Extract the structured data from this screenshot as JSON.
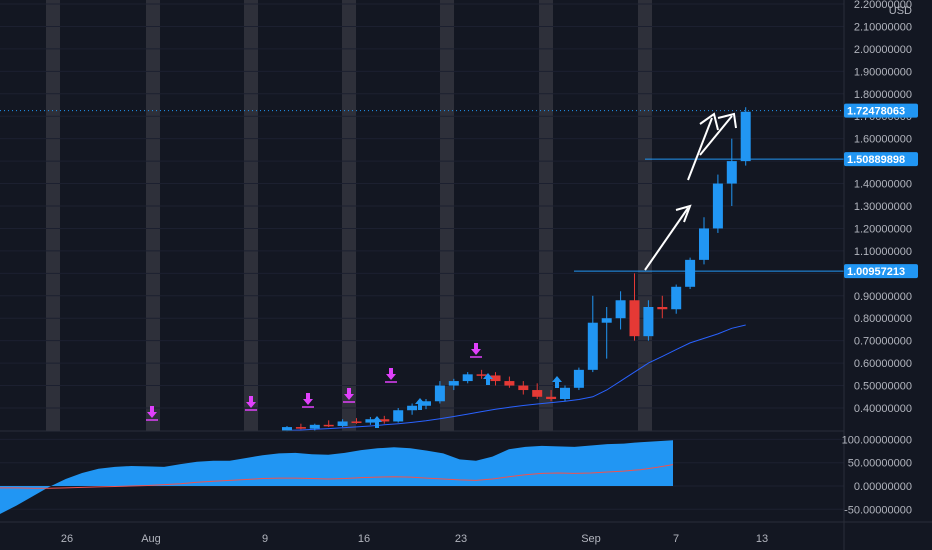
{
  "chart_data": [
    {
      "type": "candlestick",
      "currency": "USD",
      "x_tick_labels": [
        "26",
        "Aug",
        "9",
        "16",
        "23",
        "Sep",
        "7",
        "13"
      ],
      "y_tick_labels": [
        "0.40000000",
        "0.50000000",
        "0.60000000",
        "0.70000000",
        "0.80000000",
        "0.90000000",
        "1.00000000",
        "1.10000000",
        "1.20000000",
        "1.30000000",
        "1.40000000",
        "1.50000000",
        "1.60000000",
        "1.70000000",
        "1.80000000",
        "1.90000000",
        "2.00000000",
        "2.10000000",
        "2.20000000"
      ],
      "ylim": [
        0.3,
        2.22
      ],
      "price_lines": [
        {
          "value": 1.72478063,
          "label": "1.72478063",
          "style": "dotted",
          "color": "#2196f3"
        },
        {
          "value": 1.50889898,
          "label": "1.50889898",
          "style": "solid",
          "color": "#2196f3"
        },
        {
          "value": 1.00957213,
          "label": "1.00957213",
          "style": "solid",
          "color": "#2196f3"
        }
      ],
      "candles": [
        {
          "o": 0.3,
          "h": 0.32,
          "l": 0.295,
          "c": 0.315
        },
        {
          "o": 0.315,
          "h": 0.33,
          "l": 0.305,
          "c": 0.308
        },
        {
          "o": 0.308,
          "h": 0.33,
          "l": 0.3,
          "c": 0.325
        },
        {
          "o": 0.325,
          "h": 0.345,
          "l": 0.315,
          "c": 0.32
        },
        {
          "o": 0.32,
          "h": 0.35,
          "l": 0.315,
          "c": 0.34
        },
        {
          "o": 0.34,
          "h": 0.355,
          "l": 0.33,
          "c": 0.335
        },
        {
          "o": 0.335,
          "h": 0.36,
          "l": 0.325,
          "c": 0.35
        },
        {
          "o": 0.35,
          "h": 0.365,
          "l": 0.33,
          "c": 0.34
        },
        {
          "o": 0.34,
          "h": 0.4,
          "l": 0.335,
          "c": 0.39
        },
        {
          "o": 0.39,
          "h": 0.42,
          "l": 0.37,
          "c": 0.41
        },
        {
          "o": 0.41,
          "h": 0.44,
          "l": 0.395,
          "c": 0.43
        },
        {
          "o": 0.43,
          "h": 0.52,
          "l": 0.42,
          "c": 0.5
        },
        {
          "o": 0.5,
          "h": 0.53,
          "l": 0.48,
          "c": 0.52
        },
        {
          "o": 0.52,
          "h": 0.56,
          "l": 0.51,
          "c": 0.55
        },
        {
          "o": 0.55,
          "h": 0.57,
          "l": 0.53,
          "c": 0.545
        },
        {
          "o": 0.545,
          "h": 0.56,
          "l": 0.5,
          "c": 0.52
        },
        {
          "o": 0.52,
          "h": 0.54,
          "l": 0.49,
          "c": 0.5
        },
        {
          "o": 0.5,
          "h": 0.52,
          "l": 0.46,
          "c": 0.48
        },
        {
          "o": 0.48,
          "h": 0.51,
          "l": 0.44,
          "c": 0.45
        },
        {
          "o": 0.45,
          "h": 0.48,
          "l": 0.43,
          "c": 0.44
        },
        {
          "o": 0.44,
          "h": 0.5,
          "l": 0.43,
          "c": 0.49
        },
        {
          "o": 0.49,
          "h": 0.58,
          "l": 0.48,
          "c": 0.57
        },
        {
          "o": 0.57,
          "h": 0.9,
          "l": 0.56,
          "c": 0.78
        },
        {
          "o": 0.78,
          "h": 0.85,
          "l": 0.62,
          "c": 0.8
        },
        {
          "o": 0.8,
          "h": 0.92,
          "l": 0.75,
          "c": 0.88
        },
        {
          "o": 0.88,
          "h": 1.0,
          "l": 0.7,
          "c": 0.72
        },
        {
          "o": 0.72,
          "h": 0.88,
          "l": 0.7,
          "c": 0.85
        },
        {
          "o": 0.85,
          "h": 0.9,
          "l": 0.8,
          "c": 0.84
        },
        {
          "o": 0.84,
          "h": 0.95,
          "l": 0.82,
          "c": 0.94
        },
        {
          "o": 0.94,
          "h": 1.07,
          "l": 0.93,
          "c": 1.06
        },
        {
          "o": 1.06,
          "h": 1.25,
          "l": 1.04,
          "c": 1.2
        },
        {
          "o": 1.2,
          "h": 1.44,
          "l": 1.18,
          "c": 1.4
        },
        {
          "o": 1.4,
          "h": 1.6,
          "l": 1.3,
          "c": 1.5
        },
        {
          "o": 1.5,
          "h": 1.74,
          "l": 1.48,
          "c": 1.72
        }
      ],
      "moving_average": [
        0.3,
        0.302,
        0.305,
        0.308,
        0.312,
        0.316,
        0.32,
        0.325,
        0.33,
        0.336,
        0.343,
        0.352,
        0.362,
        0.373,
        0.384,
        0.394,
        0.403,
        0.411,
        0.418,
        0.424,
        0.43,
        0.438,
        0.45,
        0.48,
        0.52,
        0.56,
        0.6,
        0.63,
        0.66,
        0.69,
        0.71,
        0.73,
        0.755,
        0.77
      ]
    },
    {
      "type": "area",
      "y_tick_labels": [
        "100.00000000",
        "50.00000000",
        "0.00000000",
        "-50.00000000"
      ],
      "ylim": [
        -75,
        105
      ],
      "series": [
        {
          "values": [
            -60,
            -42,
            -22,
            -2,
            15,
            28,
            37,
            41,
            43,
            42,
            41,
            47,
            52,
            54,
            54,
            60,
            66,
            70,
            71,
            68,
            67,
            71,
            77,
            81,
            83,
            81,
            76,
            70,
            57,
            54,
            63,
            79,
            84,
            86,
            85,
            84,
            87,
            90,
            91,
            94,
            96,
            98
          ],
          "color": "#2196f3"
        },
        {
          "values": [
            -4,
            -4,
            -5,
            -5,
            -4,
            -3,
            -2,
            -1,
            0,
            1,
            3,
            5,
            8,
            10,
            12,
            14,
            16,
            17,
            17,
            16,
            15,
            16,
            18,
            19,
            20,
            19,
            17,
            15,
            13,
            12,
            15,
            20,
            24,
            27,
            28,
            27,
            28,
            30,
            32,
            35,
            40,
            46
          ],
          "color": "#ef5350"
        }
      ]
    }
  ]
}
